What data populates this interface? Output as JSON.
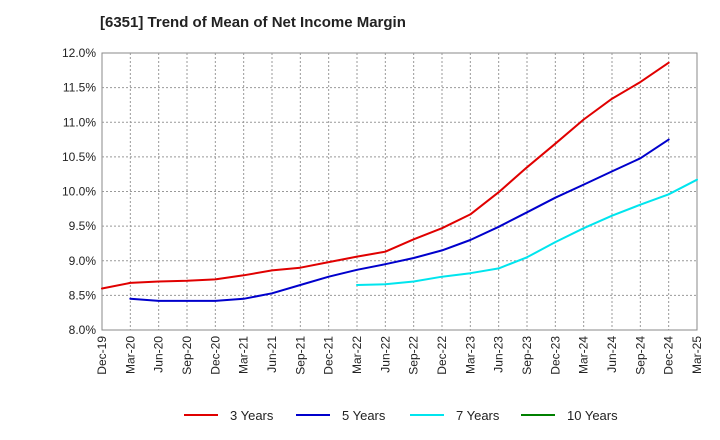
{
  "chart_data": {
    "type": "line",
    "title": "[6351]  Trend of Mean of Net Income Margin",
    "xlabel": "",
    "ylabel": "",
    "x_tick_labels": [
      "Dec-19",
      "Mar-20",
      "Jun-20",
      "Sep-20",
      "Dec-20",
      "Mar-21",
      "Jun-21",
      "Sep-21",
      "Dec-21",
      "Mar-22",
      "Jun-22",
      "Sep-22",
      "Dec-22",
      "Mar-23",
      "Jun-23",
      "Sep-23",
      "Dec-23",
      "Mar-24",
      "Jun-24",
      "Sep-24",
      "Dec-24",
      "Mar-25"
    ],
    "y_tick_labels": [
      "8.0%",
      "8.5%",
      "9.0%",
      "9.5%",
      "10.0%",
      "10.5%",
      "11.0%",
      "11.5%",
      "12.0%"
    ],
    "ylim": [
      8.0,
      12.0
    ],
    "y_unit": "%",
    "grid": true,
    "legend_position": "bottom",
    "series": [
      {
        "name": "3 Years",
        "color": "#e00000",
        "start_index": 0,
        "values": [
          8.6,
          8.68,
          8.7,
          8.71,
          8.73,
          8.79,
          8.86,
          8.9,
          8.98,
          9.06,
          9.13,
          9.31,
          9.47,
          9.67,
          9.99,
          10.35,
          10.69,
          11.04,
          11.34,
          11.58,
          11.86
        ]
      },
      {
        "name": "5 Years",
        "color": "#0000cc",
        "start_index": 1,
        "values": [
          8.45,
          8.42,
          8.42,
          8.42,
          8.45,
          8.53,
          8.65,
          8.77,
          8.87,
          8.95,
          9.04,
          9.15,
          9.3,
          9.49,
          9.7,
          9.91,
          10.1,
          10.29,
          10.48,
          10.75
        ]
      },
      {
        "name": "7 Years",
        "color": "#00e5ee",
        "start_index": 9,
        "values": [
          8.65,
          8.66,
          8.7,
          8.77,
          8.82,
          8.89,
          9.05,
          9.27,
          9.47,
          9.65,
          9.81,
          9.96,
          10.17
        ]
      },
      {
        "name": "10 Years",
        "color": "#008000",
        "start_index": 0,
        "values": []
      }
    ]
  }
}
